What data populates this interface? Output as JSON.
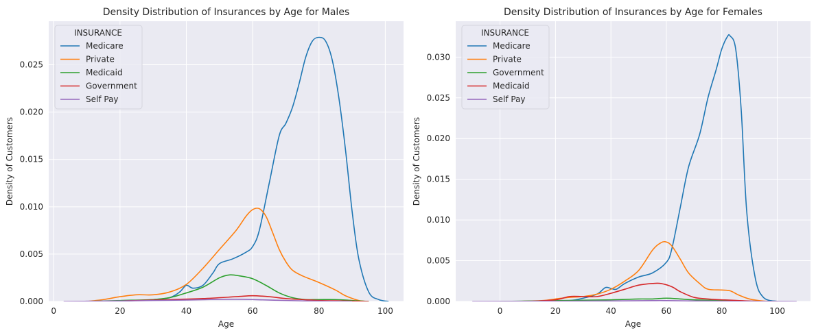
{
  "chart_data": [
    {
      "type": "line",
      "title": "Density Distribution of Insurances by Age for Males",
      "xlabel": "Age",
      "ylabel": "Density of Customers",
      "xlim": [
        -1.5,
        105.5
      ],
      "ylim": [
        0,
        0.0296
      ],
      "xticks": [
        0,
        20,
        40,
        60,
        80,
        100
      ],
      "yticks": [
        0.0,
        0.005,
        0.01,
        0.015,
        0.02,
        0.025
      ],
      "ytick_labels": [
        "0.000",
        "0.005",
        "0.010",
        "0.015",
        "0.020",
        "0.025"
      ],
      "grid": true,
      "legend": {
        "title": "INSURANCE",
        "placement": "top-left",
        "entries": [
          "Medicare",
          "Private",
          "Medicaid",
          "Government",
          "Self Pay"
        ]
      },
      "series": [
        {
          "name": "Medicare",
          "color": "#1f77b4",
          "x": [
            18,
            25,
            30,
            35,
            38,
            40,
            42,
            45,
            48,
            50,
            54,
            58,
            60,
            62,
            65,
            68,
            70,
            72,
            74,
            76,
            78,
            80,
            82,
            84,
            86,
            88,
            90,
            92,
            95,
            98,
            101
          ],
          "y": [
            0.0,
            0.0001,
            0.0002,
            0.0004,
            0.001,
            0.0017,
            0.0014,
            0.0017,
            0.003,
            0.004,
            0.0045,
            0.0052,
            0.0058,
            0.0075,
            0.0125,
            0.0175,
            0.0188,
            0.0205,
            0.023,
            0.0258,
            0.0275,
            0.0279,
            0.0275,
            0.0255,
            0.0215,
            0.016,
            0.0095,
            0.0045,
            0.001,
            0.0002,
            0.0
          ]
        },
        {
          "name": "Private",
          "color": "#ff7f0e",
          "x": [
            10,
            15,
            20,
            25,
            30,
            35,
            40,
            45,
            50,
            55,
            58,
            60,
            62,
            64,
            66,
            68,
            70,
            72,
            75,
            80,
            85,
            88,
            92,
            95
          ],
          "y": [
            0.0,
            0.0002,
            0.0005,
            0.0007,
            0.0007,
            0.001,
            0.0018,
            0.0035,
            0.0055,
            0.0075,
            0.009,
            0.0097,
            0.0098,
            0.009,
            0.0073,
            0.0055,
            0.0042,
            0.0033,
            0.0027,
            0.002,
            0.0012,
            0.0006,
            0.0001,
            0.0
          ]
        },
        {
          "name": "Medicaid",
          "color": "#2ca02c",
          "x": [
            10,
            20,
            30,
            35,
            40,
            45,
            50,
            53,
            56,
            60,
            64,
            68,
            72,
            76,
            80,
            85,
            90,
            95
          ],
          "y": [
            0.0,
            0.0001,
            0.0002,
            0.0004,
            0.0009,
            0.0015,
            0.0025,
            0.0028,
            0.0027,
            0.0024,
            0.0017,
            0.0009,
            0.0004,
            0.0002,
            0.0002,
            0.0002,
            0.0001,
            0.0
          ]
        },
        {
          "name": "Government",
          "color": "#d62728",
          "x": [
            15,
            25,
            35,
            45,
            55,
            60,
            65,
            70,
            75,
            80,
            88,
            95
          ],
          "y": [
            0.0,
            0.0001,
            0.0002,
            0.0003,
            0.0005,
            0.0006,
            0.0005,
            0.0003,
            0.0002,
            0.0001,
            5e-05,
            0.0
          ]
        },
        {
          "name": "Self Pay",
          "color": "#9467bd",
          "x": [
            3,
            10,
            20,
            30,
            40,
            50,
            55,
            60,
            70,
            80,
            90
          ],
          "y": [
            0.0,
            2e-05,
            5e-05,
            0.0001,
            0.00015,
            0.00022,
            0.00023,
            0.0002,
            0.0001,
            3e-05,
            0.0
          ]
        }
      ]
    },
    {
      "type": "line",
      "title": "Density Distribution of Insurances by Age for Females",
      "xlabel": "Age",
      "ylabel": "Density of Customers",
      "xlim": [
        -16,
        112
      ],
      "ylim": [
        0,
        0.0344
      ],
      "xticks": [
        0,
        20,
        40,
        60,
        80,
        100
      ],
      "yticks": [
        0.0,
        0.005,
        0.01,
        0.015,
        0.02,
        0.025,
        0.03
      ],
      "ytick_labels": [
        "0.000",
        "0.005",
        "0.010",
        "0.015",
        "0.020",
        "0.025",
        "0.030"
      ],
      "grid": true,
      "legend": {
        "title": "INSURANCE",
        "placement": "top-left",
        "entries": [
          "Medicare",
          "Private",
          "Government",
          "Medicaid",
          "Self Pay"
        ]
      },
      "series": [
        {
          "name": "Medicare",
          "color": "#1f77b4",
          "x": [
            15,
            25,
            30,
            35,
            38,
            40,
            42,
            45,
            50,
            55,
            60,
            62,
            65,
            68,
            72,
            75,
            78,
            80,
            82,
            83,
            85,
            87,
            89,
            92,
            95,
            100
          ],
          "y": [
            0.0,
            0.0001,
            0.0004,
            0.0009,
            0.0017,
            0.0016,
            0.0015,
            0.0022,
            0.003,
            0.0035,
            0.0048,
            0.0065,
            0.0115,
            0.0165,
            0.0205,
            0.025,
            0.0285,
            0.031,
            0.0325,
            0.0326,
            0.031,
            0.0235,
            0.011,
            0.003,
            0.0005,
            0.0
          ]
        },
        {
          "name": "Private",
          "color": "#ff7f0e",
          "x": [
            5,
            15,
            20,
            25,
            30,
            35,
            40,
            45,
            50,
            55,
            58,
            60,
            62,
            65,
            68,
            72,
            75,
            80,
            83,
            86,
            90,
            95,
            100
          ],
          "y": [
            0.0,
            0.0001,
            0.0003,
            0.0005,
            0.0006,
            0.0009,
            0.0015,
            0.0025,
            0.0038,
            0.0063,
            0.0072,
            0.0073,
            0.0068,
            0.0052,
            0.0035,
            0.0022,
            0.0015,
            0.0014,
            0.0013,
            0.0008,
            0.0003,
            5e-05,
            0.0
          ]
        },
        {
          "name": "Government",
          "color": "#2ca02c",
          "x": [
            0,
            20,
            40,
            50,
            55,
            60,
            65,
            70,
            80,
            90,
            100
          ],
          "y": [
            0.0,
            0.0001,
            0.0002,
            0.0003,
            0.0003,
            0.0004,
            0.0003,
            0.0002,
            0.0001,
            3e-05,
            0.0
          ]
        },
        {
          "name": "Medicaid",
          "color": "#d62728",
          "x": [
            10,
            20,
            25,
            30,
            35,
            40,
            45,
            50,
            55,
            58,
            62,
            65,
            70,
            75,
            80,
            90,
            100
          ],
          "y": [
            0.0,
            0.0002,
            0.0006,
            0.0006,
            0.0006,
            0.001,
            0.0015,
            0.002,
            0.0022,
            0.0022,
            0.0018,
            0.0012,
            0.0005,
            0.0003,
            0.0002,
            5e-05,
            0.0
          ]
        },
        {
          "name": "Self Pay",
          "color": "#9467bd",
          "x": [
            -10,
            0,
            20,
            40,
            55,
            60,
            70,
            80,
            90,
            100,
            107
          ],
          "y": [
            0.0,
            1e-05,
            3e-05,
            6e-05,
            0.0001,
            0.0001,
            6e-05,
            3e-05,
            1e-05,
            1e-05,
            0.0
          ]
        }
      ]
    }
  ]
}
